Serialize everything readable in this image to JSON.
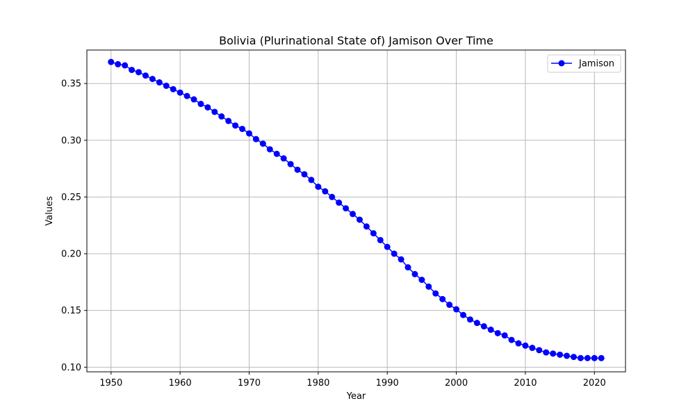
{
  "chart_data": {
    "type": "line",
    "title": "Bolivia (Plurinational State of) Jamison Over Time",
    "xlabel": "Year",
    "ylabel": "Values",
    "xlim": [
      1946.5,
      2024.5
    ],
    "ylim": [
      0.0959,
      0.3795
    ],
    "xticks": [
      1950,
      1960,
      1970,
      1980,
      1990,
      2000,
      2010,
      2020
    ],
    "yticks": [
      0.1,
      0.15,
      0.2,
      0.25,
      0.3,
      0.35
    ],
    "ytick_labels": [
      "0.10",
      "0.15",
      "0.20",
      "0.25",
      "0.30",
      "0.35"
    ],
    "xtick_labels": [
      "1950",
      "1960",
      "1970",
      "1980",
      "1990",
      "2000",
      "2010",
      "2020"
    ],
    "grid": true,
    "legend_position": "top-right",
    "series": [
      {
        "name": "Jamison",
        "color": "#0000ff",
        "marker": "circle",
        "x": [
          1950,
          1951,
          1952,
          1953,
          1954,
          1955,
          1956,
          1957,
          1958,
          1959,
          1960,
          1961,
          1962,
          1963,
          1964,
          1965,
          1966,
          1967,
          1968,
          1969,
          1970,
          1971,
          1972,
          1973,
          1974,
          1975,
          1976,
          1977,
          1978,
          1979,
          1980,
          1981,
          1982,
          1983,
          1984,
          1985,
          1986,
          1987,
          1988,
          1989,
          1990,
          1991,
          1992,
          1993,
          1994,
          1995,
          1996,
          1997,
          1998,
          1999,
          2000,
          2001,
          2002,
          2003,
          2004,
          2005,
          2006,
          2007,
          2008,
          2009,
          2010,
          2011,
          2012,
          2013,
          2014,
          2015,
          2016,
          2017,
          2018,
          2019,
          2020,
          2021
        ],
        "y": [
          0.369,
          0.367,
          0.366,
          0.362,
          0.36,
          0.357,
          0.354,
          0.351,
          0.348,
          0.345,
          0.342,
          0.339,
          0.336,
          0.332,
          0.329,
          0.325,
          0.321,
          0.317,
          0.313,
          0.31,
          0.306,
          0.301,
          0.297,
          0.292,
          0.288,
          0.284,
          0.279,
          0.274,
          0.27,
          0.265,
          0.259,
          0.255,
          0.25,
          0.245,
          0.24,
          0.235,
          0.23,
          0.224,
          0.218,
          0.212,
          0.206,
          0.2,
          0.195,
          0.188,
          0.182,
          0.177,
          0.171,
          0.165,
          0.16,
          0.155,
          0.151,
          0.146,
          0.142,
          0.139,
          0.136,
          0.133,
          0.13,
          0.128,
          0.124,
          0.121,
          0.119,
          0.117,
          0.115,
          0.113,
          0.112,
          0.111,
          0.11,
          0.109,
          0.108,
          0.108,
          0.108,
          0.108
        ]
      }
    ]
  }
}
